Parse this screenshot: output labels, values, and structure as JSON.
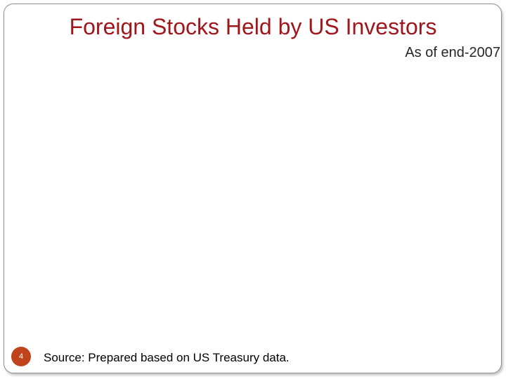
{
  "slide": {
    "title": "Foreign Stocks Held by US Investors",
    "subtitle": "As of end-2007",
    "source": "Source: Prepared based on US Treasury data.",
    "page_number": "4",
    "colors": {
      "title": "#a0161d",
      "badge": "#c0431c",
      "frame_border": "#8c8c8c"
    }
  }
}
